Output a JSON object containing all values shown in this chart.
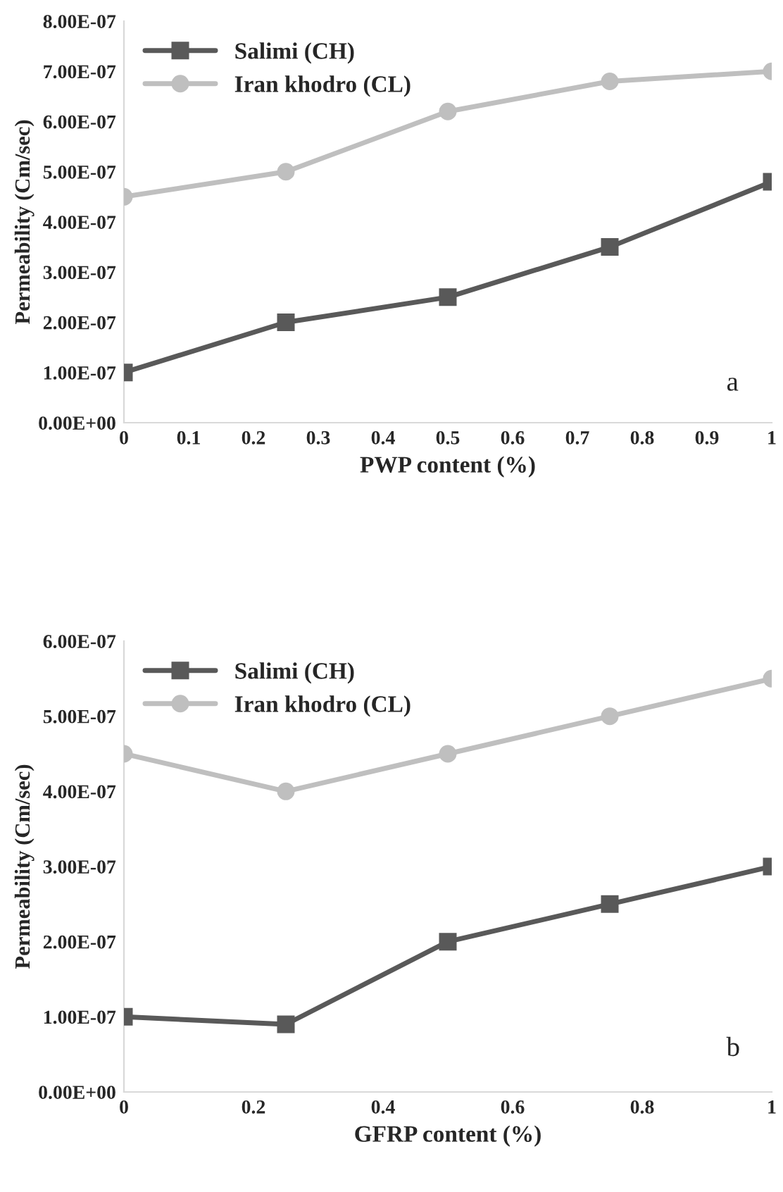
{
  "chart_data": [
    {
      "type": "line",
      "x": [
        0,
        0.25,
        0.5,
        0.75,
        1
      ],
      "xlabel": "PWP content (%)",
      "ylabel": "Permeability (Cm/sec)",
      "annotations": [
        "a"
      ],
      "series": [
        {
          "name": "Salimi (CH)",
          "color": "#595959",
          "marker": "square",
          "values": [
            1e-07,
            2e-07,
            2.5e-07,
            3.5e-07,
            4.8e-07
          ]
        },
        {
          "name": "Iran khodro (CL)",
          "color": "#bfbfbf",
          "marker": "circle",
          "values": [
            4.5e-07,
            5e-07,
            6.2e-07,
            6.8e-07,
            7e-07
          ]
        }
      ],
      "xlim": [
        0,
        1
      ],
      "xticks": [
        0,
        0.1,
        0.2,
        0.3,
        0.4,
        0.5,
        0.6,
        0.7,
        0.8,
        0.9,
        1
      ],
      "ylim": [
        0,
        8e-07
      ],
      "yticks": [
        {
          "value": 0,
          "label": "0.00E+00"
        },
        {
          "value": 1e-07,
          "label": "1.00E-07"
        },
        {
          "value": 2e-07,
          "label": "2.00E-07"
        },
        {
          "value": 3e-07,
          "label": "3.00E-07"
        },
        {
          "value": 4e-07,
          "label": "4.00E-07"
        },
        {
          "value": 5e-07,
          "label": "5.00E-07"
        },
        {
          "value": 6e-07,
          "label": "6.00E-07"
        },
        {
          "value": 7e-07,
          "label": "7.00E-07"
        },
        {
          "value": 8e-07,
          "label": "8.00E-07"
        }
      ],
      "grid": false,
      "legend": "top left"
    },
    {
      "type": "line",
      "x": [
        0,
        0.25,
        0.5,
        0.75,
        1
      ],
      "xlabel": "GFRP content (%)",
      "ylabel": "Permeability (Cm/sec)",
      "annotations": [
        "b"
      ],
      "series": [
        {
          "name": "Salimi (CH)",
          "color": "#595959",
          "marker": "square",
          "values": [
            1e-07,
            9e-08,
            2e-07,
            2.5e-07,
            3e-07
          ]
        },
        {
          "name": "Iran khodro (CL)",
          "color": "#bfbfbf",
          "marker": "circle",
          "values": [
            4.5e-07,
            4e-07,
            4.5e-07,
            5e-07,
            5.5e-07
          ]
        }
      ],
      "xlim": [
        0,
        1
      ],
      "xticks": [
        0,
        0.2,
        0.4,
        0.6,
        0.8,
        1
      ],
      "ylim": [
        0,
        6e-07
      ],
      "yticks": [
        {
          "value": 0,
          "label": "0.00E+00"
        },
        {
          "value": 1e-07,
          "label": "1.00E-07"
        },
        {
          "value": 2e-07,
          "label": "2.00E-07"
        },
        {
          "value": 3e-07,
          "label": "3.00E-07"
        },
        {
          "value": 4e-07,
          "label": "4.00E-07"
        },
        {
          "value": 5e-07,
          "label": "5.00E-07"
        },
        {
          "value": 6e-07,
          "label": "6.00E-07"
        }
      ],
      "grid": false,
      "legend": "top left"
    }
  ]
}
